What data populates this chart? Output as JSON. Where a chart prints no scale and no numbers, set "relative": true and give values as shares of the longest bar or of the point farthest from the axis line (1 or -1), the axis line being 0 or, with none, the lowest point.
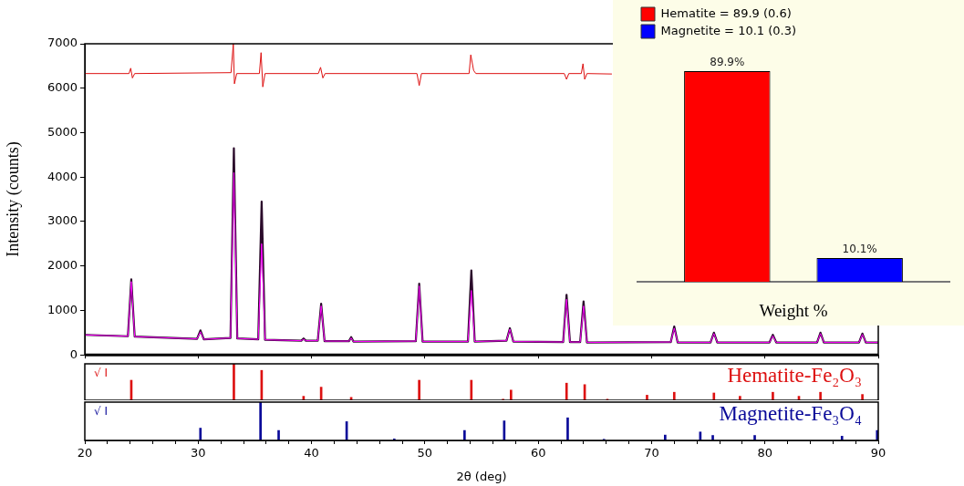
{
  "chart_data": [
    {
      "type": "line",
      "ylabel": "Intensity (counts)",
      "xlim": [
        20,
        90
      ],
      "xticks": [
        20,
        30,
        40,
        50,
        60,
        70,
        80,
        90
      ],
      "ylim": [
        0,
        7000
      ],
      "yticks": [
        0,
        1000,
        2000,
        3000,
        4000,
        5000,
        6000,
        7000
      ],
      "tick_labels": "y",
      "grid": false,
      "legend": false,
      "marker": "none",
      "line_style": "solid",
      "x": [
        20,
        23.8,
        24.1,
        24.4,
        29.9,
        30.2,
        30.5,
        32.85,
        33.15,
        33.45,
        35.3,
        35.6,
        35.9,
        39.1,
        39.3,
        39.5,
        40.55,
        40.85,
        41.15,
        43.3,
        43.5,
        43.7,
        49.2,
        49.5,
        49.8,
        53.8,
        54.1,
        54.4,
        57.2,
        57.5,
        57.8,
        62.2,
        62.5,
        62.8,
        63.7,
        64.0,
        64.3,
        71.7,
        72.0,
        72.3,
        75.2,
        75.5,
        75.8,
        80.4,
        80.7,
        81.0,
        84.6,
        84.9,
        85.2,
        88.3,
        88.6,
        88.9,
        90
      ],
      "series": [
        {
          "color": "#2a0a2a",
          "values": [
            450,
            420,
            1700,
            410,
            360,
            550,
            350,
            380,
            4650,
            370,
            350,
            3450,
            340,
            320,
            370,
            320,
            320,
            1150,
            310,
            310,
            400,
            300,
            310,
            1600,
            300,
            300,
            1900,
            300,
            320,
            600,
            300,
            290,
            1350,
            290,
            290,
            1200,
            280,
            290,
            640,
            280,
            280,
            500,
            280,
            280,
            450,
            280,
            280,
            500,
            280,
            280,
            480,
            280,
            280
          ]
        },
        {
          "color": "#ff00ff",
          "values": [
            450,
            420,
            1650,
            410,
            360,
            520,
            350,
            380,
            4100,
            370,
            350,
            2500,
            340,
            320,
            350,
            320,
            320,
            1100,
            310,
            310,
            380,
            300,
            310,
            1550,
            300,
            300,
            1450,
            300,
            320,
            580,
            300,
            290,
            1250,
            290,
            290,
            1100,
            280,
            290,
            600,
            280,
            280,
            480,
            280,
            280,
            430,
            280,
            280,
            480,
            280,
            280,
            460,
            280,
            280
          ]
        },
        {
          "color": "#dd1111",
          "x": [
            20,
            23.9,
            24.05,
            24.2,
            24.4,
            32.9,
            33.1,
            33.2,
            33.4,
            35.4,
            35.55,
            35.7,
            35.9,
            40.6,
            40.8,
            41.0,
            41.2,
            49.3,
            49.5,
            49.7,
            53.9,
            54.05,
            54.3,
            54.5,
            62.3,
            62.5,
            62.7,
            63.8,
            63.95,
            64.1,
            64.3,
            66.5
          ],
          "values": [
            6330,
            6330,
            6450,
            6230,
            6330,
            6350,
            7000,
            6100,
            6330,
            6330,
            6800,
            6030,
            6330,
            6330,
            6470,
            6230,
            6330,
            6330,
            6060,
            6330,
            6330,
            6750,
            6400,
            6330,
            6330,
            6200,
            6330,
            6330,
            6550,
            6200,
            6330,
            6320
          ]
        }
      ]
    },
    {
      "type": "bar",
      "relative": true,
      "xlim": [
        20,
        90
      ],
      "tick_labels": false,
      "grid": false,
      "legend": false,
      "annotations": [
        "√ I"
      ],
      "series": [
        {
          "name": "Hematite-Fe₂O₃",
          "color": "#dd1111",
          "x": [
            24.1,
            33.15,
            35.6,
            39.3,
            40.85,
            43.5,
            49.5,
            54.1,
            56.9,
            57.6,
            62.5,
            64.1,
            66.1,
            69.6,
            72.0,
            75.5,
            77.8,
            80.7,
            83.0,
            84.9,
            88.6
          ],
          "values": [
            0.55,
            1,
            0.82,
            0.11,
            0.36,
            0.08,
            0.55,
            0.55,
            0.03,
            0.28,
            0.47,
            0.43,
            0.03,
            0.14,
            0.22,
            0.2,
            0.11,
            0.22,
            0.11,
            0.22,
            0.16
          ]
        }
      ]
    },
    {
      "type": "bar",
      "relative": true,
      "xlabel": "2θ (deg)",
      "xlim": [
        20,
        90
      ],
      "xticks": [
        20,
        {
          "value": 22,
          "label": null
        },
        {
          "value": 24,
          "label": null
        },
        {
          "value": 26,
          "label": null
        },
        {
          "value": 28,
          "label": null
        },
        30,
        {
          "value": 32,
          "label": null
        },
        {
          "value": 34,
          "label": null
        },
        {
          "value": 36,
          "label": null
        },
        {
          "value": 38,
          "label": null
        },
        40,
        {
          "value": 42,
          "label": null
        },
        {
          "value": 44,
          "label": null
        },
        {
          "value": 46,
          "label": null
        },
        {
          "value": 48,
          "label": null
        },
        50,
        {
          "value": 52,
          "label": null
        },
        {
          "value": 54,
          "label": null
        },
        {
          "value": 56,
          "label": null
        },
        {
          "value": 58,
          "label": null
        },
        60,
        {
          "value": 62,
          "label": null
        },
        {
          "value": 64,
          "label": null
        },
        {
          "value": 66,
          "label": null
        },
        {
          "value": 68,
          "label": null
        },
        70,
        {
          "value": 72,
          "label": null
        },
        {
          "value": 74,
          "label": null
        },
        {
          "value": 76,
          "label": null
        },
        {
          "value": 78,
          "label": null
        },
        80,
        {
          "value": 82,
          "label": null
        },
        {
          "value": 84,
          "label": null
        },
        {
          "value": 86,
          "label": null
        },
        {
          "value": 88,
          "label": null
        },
        90
      ],
      "tick_labels": "x",
      "grid": false,
      "legend": false,
      "annotations": [
        "√ I"
      ],
      "series": [
        {
          "name": "Magnetite-Fe₃O₄",
          "color": "#0a0a99",
          "x": [
            30.2,
            35.5,
            37.1,
            43.1,
            47.3,
            53.5,
            57.0,
            62.6,
            65.8,
            71.2,
            74.3,
            75.4,
            79.1,
            86.8,
            89.9
          ],
          "values": [
            0.32,
            1,
            0.26,
            0.49,
            0.04,
            0.26,
            0.51,
            0.59,
            0.03,
            0.14,
            0.22,
            0.13,
            0.13,
            0.11,
            0.26
          ]
        }
      ]
    },
    {
      "type": "bar",
      "xlabel": "Weight %",
      "categories": [
        null
      ],
      "tick_labels": false,
      "grid": false,
      "legend": "top left",
      "series": [
        {
          "name": "Hematite = 89.9 (0.6)",
          "color": "#ff0000",
          "values": [
            89.9
          ],
          "value_labels": [
            "89.9%"
          ]
        },
        {
          "name": "Magnetite = 10.1 (0.3)",
          "color": "#0000ff",
          "values": [
            10.1
          ],
          "value_labels": [
            "10.1%"
          ]
        }
      ]
    }
  ]
}
